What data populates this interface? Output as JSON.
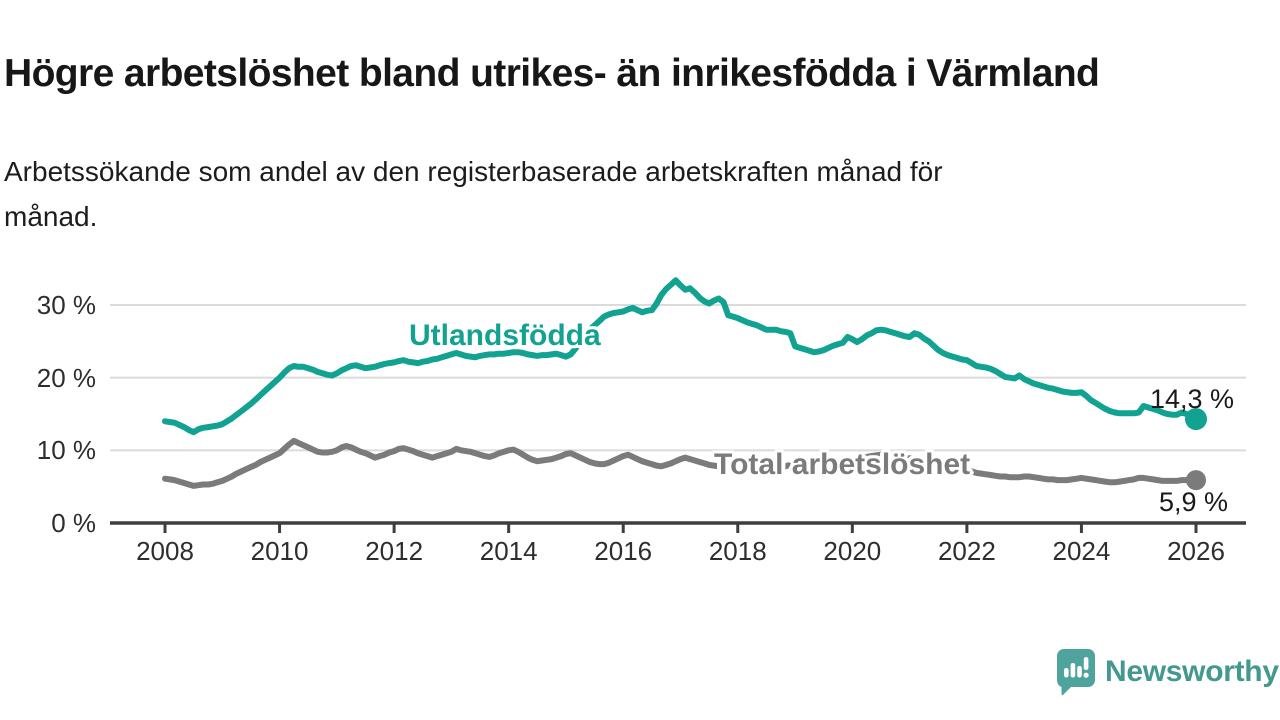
{
  "header": {
    "title": "Högre arbetslöshet bland utrikes- än inrikesfödda i Värmland",
    "subtitle": "Arbetssökande som andel av den registerbaserade arbetskraften månad för månad.",
    "subtitle_lines": [
      "Arbetssökande som andel av den registerbaserade arbetskraften månad för",
      "månad."
    ]
  },
  "footer": {
    "brand": "Newsworthy"
  },
  "theme": {
    "accent_teal": "#12A292",
    "series_gray": "#7B7B7B",
    "grid_color": "#DBDBDB",
    "axis_color": "#3E3E3E",
    "text_color": "#1A1A1A",
    "logo_bubble": "#4FA39D",
    "logo_text": "#43988F"
  },
  "chart_data": {
    "type": "line",
    "title": "Högre arbetslöshet bland utrikes- än inrikesfödda i Värmland",
    "subtitle": "Arbetssökande som andel av den registerbaserade arbetskraften månad för månad.",
    "frequency": "monthly",
    "start_year": 2008,
    "end_year": 2026,
    "legend_position": "inline-labels",
    "grid": true,
    "x_axis": {
      "label": "",
      "tick_years": [
        2008,
        2010,
        2012,
        2014,
        2016,
        2018,
        2020,
        2022,
        2024,
        2026
      ],
      "tick_labels": [
        "2008",
        "2010",
        "2012",
        "2014",
        "2016",
        "2018",
        "2020",
        "2022",
        "2024",
        "2026"
      ],
      "range": [
        2008,
        2026
      ]
    },
    "y_axis": {
      "label": "",
      "ticks": [
        0,
        10,
        20,
        30
      ],
      "tick_labels": [
        "0 %",
        "10 %",
        "20 %",
        "30 %"
      ],
      "range": [
        0,
        34
      ]
    },
    "series": [
      {
        "name": "Utlandsfödda",
        "color": "#12A292",
        "end_label": "14,3 %",
        "end_value": 14.3,
        "values": [
          14.0,
          13.9,
          13.8,
          13.5,
          13.2,
          12.8,
          12.5,
          12.9,
          13.1,
          13.2,
          13.3,
          13.4,
          13.6,
          14.0,
          14.4,
          14.9,
          15.4,
          15.9,
          16.4,
          17.0,
          17.6,
          18.2,
          18.8,
          19.4,
          20.0,
          20.7,
          21.3,
          21.6,
          21.5,
          21.5,
          21.3,
          21.1,
          20.8,
          20.6,
          20.4,
          20.3,
          20.6,
          21.0,
          21.3,
          21.6,
          21.7,
          21.5,
          21.3,
          21.4,
          21.5,
          21.7,
          21.9,
          22.0,
          22.1,
          22.3,
          22.4,
          22.2,
          22.1,
          22.0,
          22.2,
          22.3,
          22.5,
          22.6,
          22.8,
          23.0,
          23.2,
          23.4,
          23.2,
          23.0,
          22.9,
          22.8,
          23.0,
          23.1,
          23.2,
          23.2,
          23.3,
          23.3,
          23.4,
          23.5,
          23.5,
          23.4,
          23.2,
          23.1,
          23.0,
          23.1,
          23.1,
          23.2,
          23.3,
          23.1,
          22.9,
          23.2,
          24.0,
          25.0,
          25.9,
          26.6,
          27.2,
          27.8,
          28.4,
          28.7,
          28.9,
          29.0,
          29.1,
          29.4,
          29.6,
          29.3,
          29.0,
          29.2,
          29.3,
          30.2,
          31.4,
          32.2,
          32.8,
          33.4,
          32.7,
          32.1,
          32.3,
          31.7,
          31.0,
          30.5,
          30.2,
          30.6,
          30.9,
          30.4,
          28.6,
          28.4,
          28.2,
          27.9,
          27.6,
          27.4,
          27.2,
          26.9,
          26.6,
          26.6,
          26.6,
          26.4,
          26.3,
          26.1,
          24.3,
          24.1,
          23.9,
          23.7,
          23.5,
          23.6,
          23.8,
          24.1,
          24.4,
          24.6,
          24.8,
          25.6,
          25.3,
          24.9,
          25.3,
          25.8,
          26.1,
          26.5,
          26.6,
          26.5,
          26.3,
          26.1,
          25.9,
          25.7,
          25.6,
          26.1,
          25.9,
          25.4,
          25.0,
          24.4,
          23.8,
          23.4,
          23.1,
          22.9,
          22.7,
          22.5,
          22.4,
          22.0,
          21.6,
          21.5,
          21.4,
          21.2,
          20.9,
          20.5,
          20.1,
          20.0,
          19.9,
          20.3,
          19.8,
          19.5,
          19.2,
          19.0,
          18.8,
          18.6,
          18.5,
          18.3,
          18.1,
          18.0,
          17.9,
          17.9,
          18.0,
          17.5,
          16.9,
          16.5,
          16.1,
          15.7,
          15.4,
          15.2,
          15.1,
          15.1,
          15.1,
          15.1,
          15.2,
          16.1,
          15.9,
          15.7,
          15.5,
          15.2,
          15.0,
          14.9,
          14.9,
          15.2,
          15.0,
          14.6,
          14.3
        ]
      },
      {
        "name": "Total arbetslöshet",
        "color": "#7B7B7B",
        "end_label": "5,9 %",
        "end_value": 5.9,
        "values": [
          6.1,
          6.0,
          5.9,
          5.7,
          5.5,
          5.3,
          5.1,
          5.2,
          5.3,
          5.3,
          5.4,
          5.6,
          5.8,
          6.1,
          6.4,
          6.8,
          7.1,
          7.4,
          7.7,
          8.0,
          8.4,
          8.7,
          9.0,
          9.3,
          9.6,
          10.2,
          10.8,
          11.3,
          11.0,
          10.7,
          10.4,
          10.1,
          9.8,
          9.7,
          9.7,
          9.8,
          10.0,
          10.4,
          10.6,
          10.4,
          10.1,
          9.8,
          9.6,
          9.3,
          9.0,
          9.2,
          9.4,
          9.7,
          9.9,
          10.2,
          10.3,
          10.1,
          9.9,
          9.6,
          9.4,
          9.2,
          9.0,
          9.2,
          9.4,
          9.6,
          9.8,
          10.2,
          10.0,
          9.9,
          9.8,
          9.6,
          9.4,
          9.2,
          9.1,
          9.3,
          9.6,
          9.8,
          10.0,
          10.1,
          9.8,
          9.4,
          9.0,
          8.7,
          8.5,
          8.6,
          8.7,
          8.8,
          9.0,
          9.2,
          9.5,
          9.6,
          9.3,
          9.0,
          8.7,
          8.4,
          8.2,
          8.1,
          8.1,
          8.3,
          8.6,
          8.9,
          9.2,
          9.4,
          9.1,
          8.8,
          8.5,
          8.3,
          8.1,
          7.9,
          7.8,
          8.0,
          8.2,
          8.5,
          8.8,
          9.0,
          8.8,
          8.6,
          8.4,
          8.2,
          8.0,
          7.9,
          7.8,
          7.9,
          8.0,
          8.2,
          8.4,
          8.5,
          8.5,
          8.3,
          8.1,
          7.9,
          7.7,
          7.6,
          7.5,
          7.6,
          7.8,
          8.0,
          8.1,
          8.2,
          8.2,
          8.0,
          7.9,
          7.8,
          7.7,
          7.7,
          7.8,
          7.9,
          8.1,
          8.2,
          8.4,
          8.6,
          8.9,
          9.1,
          9.2,
          9.3,
          9.4,
          9.3,
          9.2,
          9.1,
          9.0,
          8.9,
          8.9,
          8.8,
          8.7,
          8.5,
          8.3,
          8.1,
          7.9,
          7.7,
          7.6,
          7.5,
          7.4,
          7.3,
          7.3,
          7.1,
          6.9,
          6.8,
          6.7,
          6.6,
          6.5,
          6.4,
          6.4,
          6.3,
          6.3,
          6.3,
          6.4,
          6.4,
          6.3,
          6.2,
          6.1,
          6.0,
          6.0,
          5.9,
          5.9,
          5.9,
          6.0,
          6.1,
          6.2,
          6.1,
          6.0,
          5.9,
          5.8,
          5.7,
          5.6,
          5.6,
          5.7,
          5.8,
          5.9,
          6.0,
          6.2,
          6.2,
          6.1,
          6.0,
          5.9,
          5.8,
          5.8,
          5.8,
          5.8,
          5.9,
          5.9,
          5.9,
          5.9
        ]
      }
    ]
  }
}
